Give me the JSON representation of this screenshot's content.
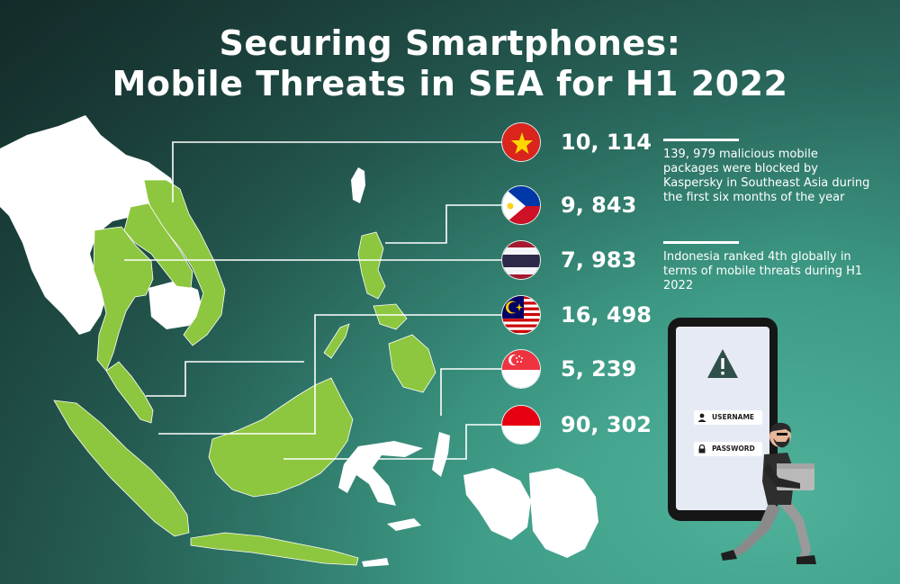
{
  "title": {
    "line1": "Securing Smartphones:",
    "line2": "Mobile Threats in SEA for H1 2022"
  },
  "countries": [
    {
      "flag": "vietnam-flag",
      "value": "10, 114"
    },
    {
      "flag": "philippines-flag",
      "value": "9, 843"
    },
    {
      "flag": "thailand-flag",
      "value": "7, 983"
    },
    {
      "flag": "malaysia-flag",
      "value": "16, 498"
    },
    {
      "flag": "singapore-flag",
      "value": "5, 239"
    },
    {
      "flag": "indonesia-flag",
      "value": "90, 302"
    }
  ],
  "notes": [
    "139, 979 malicious mobile packages were blocked by Kaspersky in Southeast Asia during the first six months of the year",
    "Indonesia ranked 4th globally in terms of mobile threats during H1 2022"
  ],
  "phone": {
    "username_label": "USERNAME",
    "password_label": "PASSWORD"
  },
  "colors": {
    "highlight_land": "#8dc63f",
    "other_land": "#ffffff",
    "connector": "#ffffff"
  }
}
